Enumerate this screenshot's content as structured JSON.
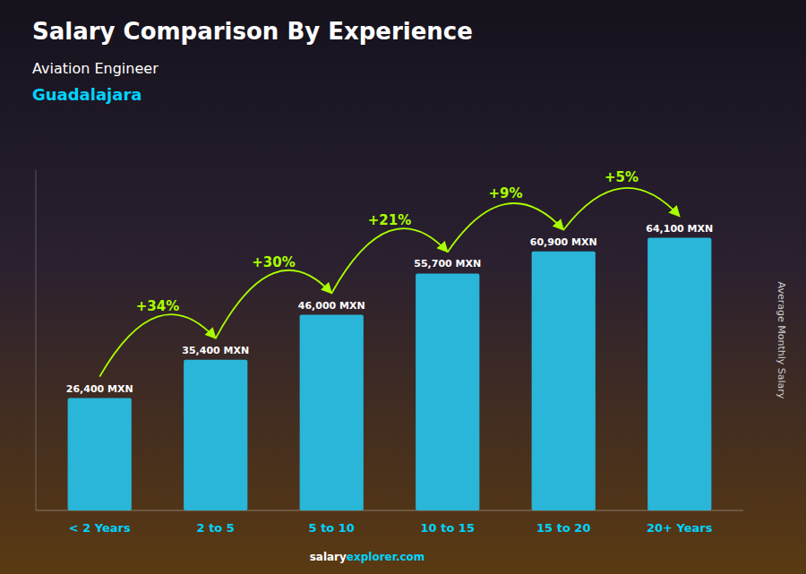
{
  "chart_data": {
    "type": "bar",
    "title": "Salary Comparison By Experience",
    "subtitle": [
      "Aviation Engineer",
      "Guadalajara"
    ],
    "ylabel": "Average Monthly Salary",
    "categories": [
      "< 2 Years",
      "2 to 5",
      "5 to 10",
      "10 to 15",
      "15 to 20",
      "20+ Years"
    ],
    "values": [
      26400,
      35400,
      46000,
      55700,
      60900,
      64100
    ],
    "value_labels": [
      "26,400 MXN",
      "35,400 MXN",
      "46,000 MXN",
      "55,700 MXN",
      "60,900 MXN",
      "64,100 MXN"
    ],
    "data_labels": true,
    "annotations": [
      "+34%",
      "+30%",
      "+21%",
      "+9%",
      "+5%"
    ],
    "footer": [
      "salary",
      "explorer.com"
    ],
    "color": "#29b6d8",
    "ylim": [
      0,
      80000
    ],
    "tick_labels": "x",
    "grid": false
  }
}
